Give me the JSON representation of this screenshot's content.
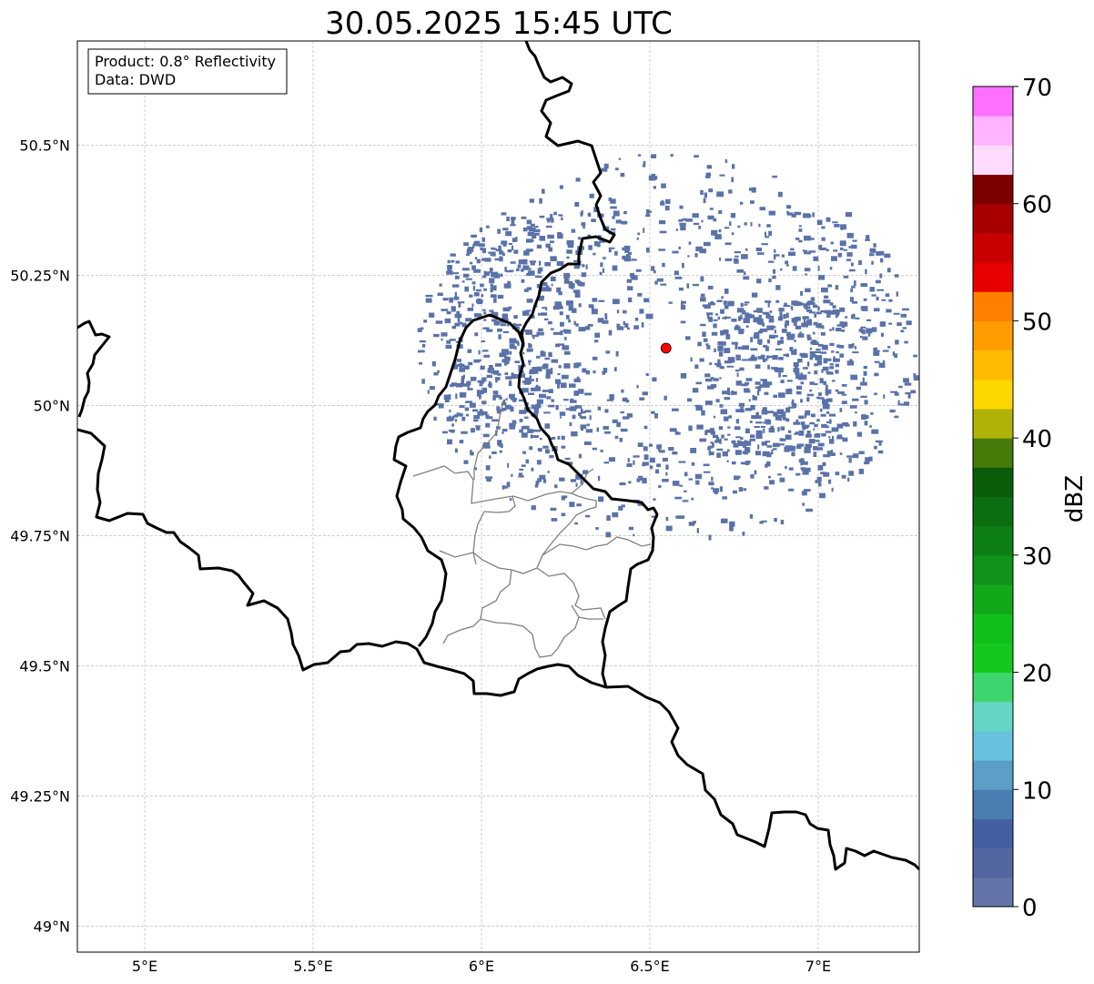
{
  "title": "30.05.2025 15:45 UTC",
  "info_box": {
    "product_line": "Product: 0.8° Reflectivity",
    "data_line": "Data: DWD"
  },
  "map": {
    "lon_range": [
      4.8,
      7.3
    ],
    "lat_range": [
      48.95,
      50.7
    ],
    "lon_ticks": [
      "5°E",
      "5.5°E",
      "6°E",
      "6.5°E",
      "7°E"
    ],
    "lat_ticks": [
      "49°N",
      "49.25°N",
      "49.5°N",
      "49.75°N",
      "50°N",
      "50.25°N",
      "50.5°N"
    ],
    "gridlines": true,
    "radar_site": {
      "lon": 6.548,
      "lat": 50.11,
      "color": "#ff0000"
    },
    "echo_color": "#5a72a8"
  },
  "colorbar": {
    "label": "dBZ",
    "ticks": [
      "0",
      "10",
      "20",
      "30",
      "40",
      "50",
      "60",
      "70"
    ],
    "min": 0,
    "max": 70,
    "step": 2.5,
    "colors": [
      "#6574a8",
      "#5466a0",
      "#4460a2",
      "#4b7db2",
      "#5b9fc8",
      "#68c2dd",
      "#63d6c4",
      "#3dd66e",
      "#14c91e",
      "#11bf1a",
      "#11a81a",
      "#0f931a",
      "#0d7e14",
      "#0b6e10",
      "#085c0a",
      "#467b0a",
      "#b0b208",
      "#ffd700",
      "#ffbb00",
      "#ff9c00",
      "#ff7f00",
      "#e80000",
      "#c80000",
      "#a80000",
      "#7d0000",
      "#ffdcff",
      "#ffb4ff",
      "#ff70ff",
      "#ee33ee"
    ]
  }
}
